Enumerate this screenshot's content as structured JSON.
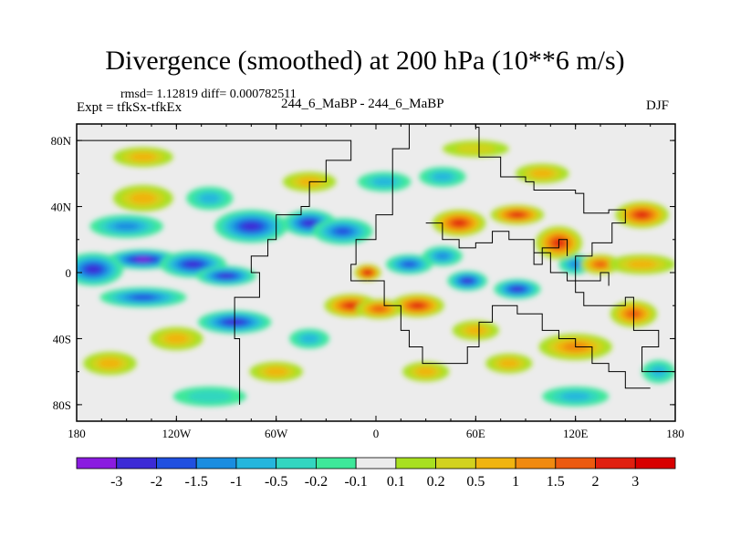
{
  "chart_data": {
    "type": "heatmap",
    "title": "Divergence (smoothed) at 200 hPa (10**6 m/s)",
    "stats": "rmsd= 1.12819 diff= 0.000782511",
    "experiment": "Expt = tfkSx-tfkEx",
    "run_label": "244_6_MaBP - 244_6_MaBP",
    "season": "DJF",
    "xlim": [
      -180,
      180
    ],
    "ylim": [
      -90,
      90
    ],
    "x_ticks": [
      {
        "value": -180,
        "label": "180"
      },
      {
        "value": -120,
        "label": "120W"
      },
      {
        "value": -60,
        "label": "60W"
      },
      {
        "value": 0,
        "label": "0"
      },
      {
        "value": 60,
        "label": "60E"
      },
      {
        "value": 120,
        "label": "120E"
      },
      {
        "value": 180,
        "label": "180"
      }
    ],
    "y_ticks": [
      {
        "value": 80,
        "label": "80N"
      },
      {
        "value": 40,
        "label": "40N"
      },
      {
        "value": 0,
        "label": "0"
      },
      {
        "value": -40,
        "label": "40S"
      },
      {
        "value": -80,
        "label": "80S"
      }
    ],
    "colorbar": {
      "labels": [
        "-3",
        "-2",
        "-1.5",
        "-1",
        "-0.5",
        "-0.2",
        "-0.1",
        "0.1",
        "0.2",
        "0.5",
        "1",
        "1.5",
        "2",
        "3"
      ],
      "colors": [
        "#8a1be0",
        "#3c2bd6",
        "#2050e0",
        "#1a8de0",
        "#25b6dd",
        "#33d6c0",
        "#3ee89a",
        "#ececec",
        "#a8e020",
        "#d2d21f",
        "#f0b410",
        "#f08a10",
        "#ec5a10",
        "#e02010",
        "#d80000"
      ]
    },
    "features": [
      {
        "lon": -140,
        "lat": 8,
        "value": -3.0,
        "rlon": 22,
        "rlat": 6
      },
      {
        "lon": -110,
        "lat": 5,
        "value": -2.3,
        "rlon": 20,
        "rlat": 8
      },
      {
        "lon": -170,
        "lat": 2,
        "value": -2.0,
        "rlon": 18,
        "rlat": 10
      },
      {
        "lon": -75,
        "lat": 28,
        "value": -2.4,
        "rlon": 22,
        "rlat": 10
      },
      {
        "lon": -40,
        "lat": 30,
        "value": -2.0,
        "rlon": 16,
        "rlat": 8
      },
      {
        "lon": -20,
        "lat": 25,
        "value": -1.5,
        "rlon": 18,
        "rlat": 8
      },
      {
        "lon": -90,
        "lat": -2,
        "value": -2.0,
        "rlon": 18,
        "rlat": 6
      },
      {
        "lon": -150,
        "lat": 28,
        "value": -1.2,
        "rlon": 22,
        "rlat": 7
      },
      {
        "lon": -85,
        "lat": -30,
        "value": -2.0,
        "rlon": 22,
        "rlat": 7
      },
      {
        "lon": -140,
        "lat": -15,
        "value": -1.5,
        "rlon": 26,
        "rlat": 6
      },
      {
        "lon": 20,
        "lat": 5,
        "value": -1.5,
        "rlon": 14,
        "rlat": 6
      },
      {
        "lon": 55,
        "lat": -5,
        "value": -2.0,
        "rlon": 12,
        "rlat": 6
      },
      {
        "lon": 40,
        "lat": 10,
        "value": -1.0,
        "rlon": 12,
        "rlat": 6
      },
      {
        "lon": 85,
        "lat": -10,
        "value": -2.0,
        "rlon": 14,
        "rlat": 6
      },
      {
        "lon": 120,
        "lat": 5,
        "value": -1.0,
        "rlon": 10,
        "rlat": 6
      },
      {
        "lon": 5,
        "lat": 55,
        "value": -0.6,
        "rlon": 16,
        "rlat": 6
      },
      {
        "lon": 40,
        "lat": 58,
        "value": -0.5,
        "rlon": 14,
        "rlat": 6
      },
      {
        "lon": -100,
        "lat": 45,
        "value": -0.8,
        "rlon": 14,
        "rlat": 7
      },
      {
        "lon": -40,
        "lat": -40,
        "value": -0.6,
        "rlon": 12,
        "rlat": 6
      },
      {
        "lon": -5,
        "lat": 0,
        "value": 3.0,
        "rlon": 8,
        "rlat": 5
      },
      {
        "lon": -15,
        "lat": -20,
        "value": 2.2,
        "rlon": 16,
        "rlat": 7
      },
      {
        "lon": 25,
        "lat": -20,
        "value": 2.2,
        "rlon": 16,
        "rlat": 7
      },
      {
        "lon": 2,
        "lat": -22,
        "value": 1.6,
        "rlon": 14,
        "rlat": 6
      },
      {
        "lon": 50,
        "lat": 30,
        "value": 2.2,
        "rlon": 16,
        "rlat": 8
      },
      {
        "lon": 85,
        "lat": 35,
        "value": 2.0,
        "rlon": 16,
        "rlat": 6
      },
      {
        "lon": 110,
        "lat": 18,
        "value": 2.8,
        "rlon": 14,
        "rlat": 10
      },
      {
        "lon": 135,
        "lat": 5,
        "value": 1.6,
        "rlon": 12,
        "rlat": 6
      },
      {
        "lon": 160,
        "lat": 35,
        "value": 2.2,
        "rlon": 16,
        "rlat": 8
      },
      {
        "lon": 160,
        "lat": 5,
        "value": 0.9,
        "rlon": 20,
        "rlat": 6
      },
      {
        "lon": 155,
        "lat": -25,
        "value": 1.8,
        "rlon": 14,
        "rlat": 8
      },
      {
        "lon": 120,
        "lat": -45,
        "value": 1.2,
        "rlon": 22,
        "rlat": 8
      },
      {
        "lon": -140,
        "lat": 45,
        "value": 0.8,
        "rlon": 18,
        "rlat": 8
      },
      {
        "lon": -40,
        "lat": 55,
        "value": 0.8,
        "rlon": 16,
        "rlat": 6
      },
      {
        "lon": -120,
        "lat": -40,
        "value": 0.8,
        "rlon": 16,
        "rlat": 7
      },
      {
        "lon": 60,
        "lat": -35,
        "value": 0.8,
        "rlon": 14,
        "rlat": 6
      },
      {
        "lon": 80,
        "lat": -55,
        "value": 0.8,
        "rlon": 14,
        "rlat": 6
      },
      {
        "lon": 100,
        "lat": 60,
        "value": 0.6,
        "rlon": 16,
        "rlat": 6
      },
      {
        "lon": -160,
        "lat": -55,
        "value": 0.6,
        "rlon": 16,
        "rlat": 7
      },
      {
        "lon": -60,
        "lat": -60,
        "value": 0.5,
        "rlon": 16,
        "rlat": 6
      },
      {
        "lon": 30,
        "lat": -60,
        "value": 0.6,
        "rlon": 14,
        "rlat": 6
      },
      {
        "lon": -140,
        "lat": 70,
        "value": 0.5,
        "rlon": 18,
        "rlat": 6
      },
      {
        "lon": 120,
        "lat": -75,
        "value": -0.5,
        "rlon": 20,
        "rlat": 6
      },
      {
        "lon": -100,
        "lat": -75,
        "value": -0.4,
        "rlon": 22,
        "rlat": 6
      },
      {
        "lon": 170,
        "lat": -60,
        "value": -0.8,
        "rlon": 10,
        "rlat": 7
      },
      {
        "lon": 60,
        "lat": 75,
        "value": 0.4,
        "rlon": 20,
        "rlat": 5
      }
    ],
    "land_outline": [
      [
        [
          -82,
          -80
        ],
        [
          -82,
          -40
        ],
        [
          -85,
          -15
        ],
        [
          -70,
          0
        ],
        [
          -75,
          10
        ],
        [
          -65,
          20
        ],
        [
          -60,
          35
        ],
        [
          -45,
          40
        ],
        [
          -40,
          55
        ],
        [
          -30,
          68
        ],
        [
          -15,
          80
        ],
        [
          -180,
          80
        ]
      ],
      [
        [
          -5,
          -5
        ],
        [
          -15,
          5
        ],
        [
          -12,
          20
        ],
        [
          0,
          35
        ],
        [
          10,
          38
        ],
        [
          10,
          75
        ],
        [
          20,
          90
        ],
        [
          60,
          88
        ],
        [
          62,
          70
        ],
        [
          75,
          58
        ],
        [
          90,
          55
        ],
        [
          95,
          50
        ],
        [
          120,
          48
        ],
        [
          125,
          36
        ],
        [
          140,
          38
        ],
        [
          150,
          30
        ],
        [
          142,
          18
        ],
        [
          130,
          10
        ],
        [
          120,
          -12
        ],
        [
          125,
          -20
        ],
        [
          150,
          -15
        ],
        [
          155,
          -35
        ],
        [
          170,
          -45
        ],
        [
          160,
          -60
        ],
        [
          180,
          -62
        ]
      ],
      [
        [
          -5,
          -5
        ],
        [
          5,
          -20
        ],
        [
          15,
          -35
        ],
        [
          20,
          -45
        ],
        [
          28,
          -55
        ],
        [
          45,
          -55
        ],
        [
          55,
          -45
        ],
        [
          62,
          -30
        ],
        [
          70,
          -20
        ],
        [
          85,
          -25
        ],
        [
          100,
          -35
        ],
        [
          110,
          -40
        ],
        [
          120,
          -45
        ],
        [
          130,
          -55
        ],
        [
          140,
          -60
        ],
        [
          150,
          -70
        ],
        [
          165,
          -70
        ]
      ],
      [
        [
          30,
          30
        ],
        [
          40,
          20
        ],
        [
          50,
          15
        ],
        [
          60,
          18
        ],
        [
          70,
          25
        ],
        [
          80,
          20
        ],
        [
          95,
          5
        ],
        [
          100,
          15
        ],
        [
          110,
          20
        ],
        [
          115,
          10
        ]
      ],
      [
        [
          95,
          12
        ],
        [
          105,
          0
        ],
        [
          115,
          -5
        ],
        [
          125,
          -5
        ],
        [
          135,
          0
        ],
        [
          140,
          -8
        ]
      ]
    ]
  }
}
